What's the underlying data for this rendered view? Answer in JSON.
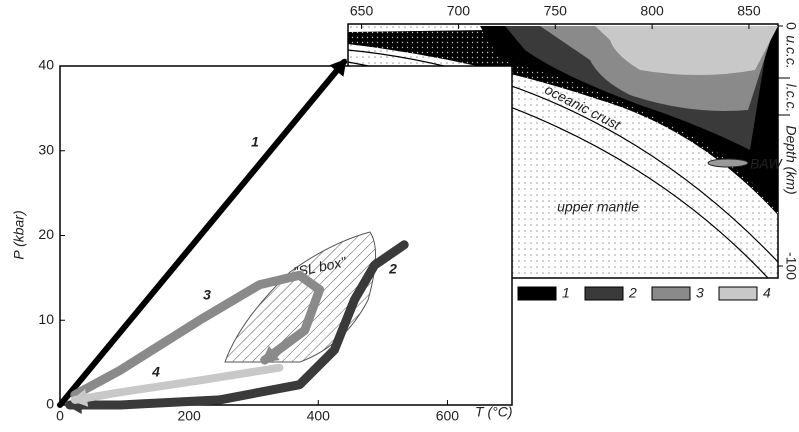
{
  "chart_data": [
    {
      "type": "line",
      "xlabel": "T (°C)",
      "ylabel": "P (kbar)",
      "xlim": [
        0,
        700
      ],
      "ylim": [
        0,
        40
      ],
      "xticks": [
        0,
        200,
        400,
        600
      ],
      "yticks": [
        0,
        10,
        20,
        30,
        40
      ],
      "annotations": [
        "\"SL box\""
      ],
      "series": [
        {
          "name": "1",
          "color": "#000000",
          "x": [
            0,
            440
          ],
          "values": [
            0,
            40.5
          ]
        },
        {
          "name": "2",
          "color": "#3a3a3a",
          "x": [
            533,
            487,
            456,
            425,
            371,
            247,
            93,
            15
          ],
          "values": [
            18.9,
            16.5,
            12.4,
            6.5,
            2.4,
            0.6,
            0,
            0
          ]
        },
        {
          "name": "3",
          "color": "#8a8a8a",
          "x": [
            23,
            93,
            216,
            309,
            371,
            402,
            379,
            317
          ],
          "values": [
            1.2,
            4.1,
            10.0,
            14.2,
            15.3,
            13.6,
            8.8,
            5.3
          ]
        },
        {
          "name": "4",
          "color": "#c8c8c8",
          "x": [
            340,
            216,
            93,
            23
          ],
          "values": [
            4.4,
            2.9,
            1.5,
            0.6
          ]
        }
      ]
    },
    {
      "type": "section",
      "xlim": [
        643,
        865
      ],
      "xticks": [
        650,
        700,
        750,
        800,
        850
      ],
      "ylabel": "Depth (km)",
      "ylim": [
        -100,
        0
      ],
      "yticks": [
        -100,
        0
      ],
      "labels": [
        "u.c.c.",
        "l.c.c.",
        "BAW",
        "oceanic crust",
        "upper mantle"
      ],
      "legend": [
        {
          "name": "1",
          "color": "#000000"
        },
        {
          "name": "2",
          "color": "#3a3a3a"
        },
        {
          "name": "3",
          "color": "#8a8a8a"
        },
        {
          "name": "4",
          "color": "#c8c8c8"
        }
      ]
    }
  ]
}
